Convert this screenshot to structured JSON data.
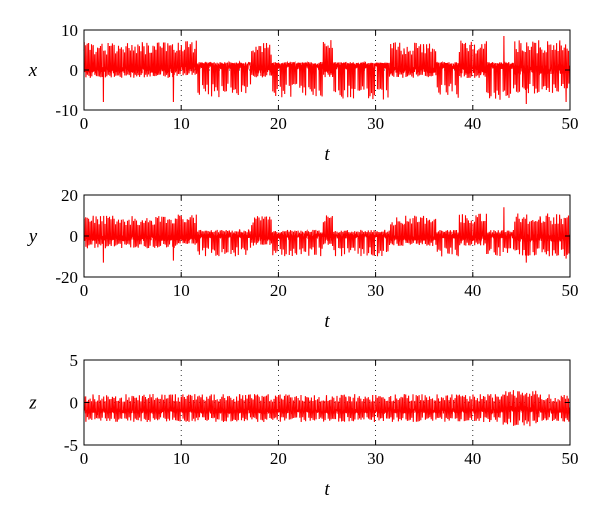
{
  "chart_data": [
    {
      "type": "line",
      "xlabel": "t",
      "ylabel": "x",
      "xlim": [
        0,
        50
      ],
      "ylim": [
        -10,
        10
      ],
      "xticks": [
        0,
        10,
        20,
        30,
        40,
        50
      ],
      "yticks": [
        -10,
        0,
        10
      ],
      "grid": "dotted-vertical",
      "color": "#ff0000",
      "segments": [
        {
          "t0": 0.0,
          "t1": 9.3,
          "base": 0.0,
          "hi": 7.0,
          "lo": -2.0,
          "rate": 6.5
        },
        {
          "t0": 9.3,
          "t1": 11.7,
          "base": 0.5,
          "hi": 7.5,
          "lo": -1.5,
          "rate": 6.5
        },
        {
          "t0": 11.7,
          "t1": 17.2,
          "base": 1.0,
          "hi": 2.0,
          "lo": -7.0,
          "rate": 6.5
        },
        {
          "t0": 17.2,
          "t1": 19.3,
          "base": 0.0,
          "hi": 7.0,
          "lo": -2.0,
          "rate": 6.5
        },
        {
          "t0": 19.3,
          "t1": 24.6,
          "base": 1.0,
          "hi": 2.0,
          "lo": -7.0,
          "rate": 6.5
        },
        {
          "t0": 24.6,
          "t1": 25.6,
          "base": 0.0,
          "hi": 7.5,
          "lo": -2.0,
          "rate": 6.5
        },
        {
          "t0": 25.6,
          "t1": 31.4,
          "base": 1.0,
          "hi": 2.0,
          "lo": -7.5,
          "rate": 6.5
        },
        {
          "t0": 31.4,
          "t1": 36.2,
          "base": 0.0,
          "hi": 7.0,
          "lo": -2.0,
          "rate": 6.5
        },
        {
          "t0": 36.2,
          "t1": 38.6,
          "base": 1.0,
          "hi": 2.0,
          "lo": -7.0,
          "rate": 6.5
        },
        {
          "t0": 38.6,
          "t1": 41.4,
          "base": 0.0,
          "hi": 7.5,
          "lo": -2.0,
          "rate": 6.5
        },
        {
          "t0": 41.4,
          "t1": 44.2,
          "base": 1.0,
          "hi": 2.0,
          "lo": -7.5,
          "rate": 6.5
        },
        {
          "t0": 44.2,
          "t1": 50.0,
          "base": 0.0,
          "hi": 7.5,
          "lo": -6.0,
          "rate": 6.5
        }
      ],
      "spikes": [
        {
          "t": 2.0,
          "v": -8.0
        },
        {
          "t": 9.2,
          "v": -8.0
        },
        {
          "t": 43.2,
          "v": 8.5
        },
        {
          "t": 45.5,
          "v": -8.5
        },
        {
          "t": 49.6,
          "v": -8.0
        }
      ]
    },
    {
      "type": "line",
      "xlabel": "t",
      "ylabel": "y",
      "xlim": [
        0,
        50
      ],
      "ylim": [
        -20,
        20
      ],
      "xticks": [
        0,
        10,
        20,
        30,
        40,
        50
      ],
      "yticks": [
        -20,
        0,
        20
      ],
      "grid": "dotted-vertical",
      "color": "#ff0000",
      "segments": [
        {
          "t0": 0.0,
          "t1": 9.3,
          "base": -1.0,
          "hi": 10.0,
          "lo": -6.0,
          "rate": 6.5
        },
        {
          "t0": 9.3,
          "t1": 11.7,
          "base": -1.0,
          "hi": 11.0,
          "lo": -5.0,
          "rate": 6.5
        },
        {
          "t0": 11.7,
          "t1": 17.2,
          "base": 0.0,
          "hi": 3.0,
          "lo": -10.0,
          "rate": 6.5
        },
        {
          "t0": 17.2,
          "t1": 19.3,
          "base": -1.0,
          "hi": 10.0,
          "lo": -5.0,
          "rate": 6.5
        },
        {
          "t0": 19.3,
          "t1": 24.6,
          "base": 0.0,
          "hi": 3.0,
          "lo": -10.0,
          "rate": 6.5
        },
        {
          "t0": 24.6,
          "t1": 25.6,
          "base": -1.0,
          "hi": 11.0,
          "lo": -5.0,
          "rate": 6.5
        },
        {
          "t0": 25.6,
          "t1": 31.4,
          "base": 0.0,
          "hi": 3.0,
          "lo": -10.0,
          "rate": 6.5
        },
        {
          "t0": 31.4,
          "t1": 36.2,
          "base": -1.0,
          "hi": 10.0,
          "lo": -5.0,
          "rate": 6.5
        },
        {
          "t0": 36.2,
          "t1": 38.6,
          "base": 0.0,
          "hi": 3.0,
          "lo": -10.0,
          "rate": 6.5
        },
        {
          "t0": 38.6,
          "t1": 41.4,
          "base": -1.0,
          "hi": 11.0,
          "lo": -5.0,
          "rate": 6.5
        },
        {
          "t0": 41.4,
          "t1": 44.2,
          "base": 0.0,
          "hi": 3.0,
          "lo": -10.0,
          "rate": 6.5
        },
        {
          "t0": 44.2,
          "t1": 50.0,
          "base": -1.0,
          "hi": 11.0,
          "lo": -10.0,
          "rate": 6.5
        }
      ],
      "spikes": [
        {
          "t": 2.0,
          "v": -13.0
        },
        {
          "t": 9.2,
          "v": -12.0
        },
        {
          "t": 43.2,
          "v": 14.0
        },
        {
          "t": 45.5,
          "v": -13.0
        },
        {
          "t": 49.6,
          "v": -11.0
        }
      ]
    },
    {
      "type": "line",
      "xlabel": "t",
      "ylabel": "z",
      "xlim": [
        0,
        50
      ],
      "ylim": [
        -5,
        5
      ],
      "xticks": [
        0,
        10,
        20,
        30,
        40,
        50
      ],
      "yticks": [
        -5,
        0,
        5
      ],
      "grid": "dotted-vertical",
      "color": "#ff0000",
      "segments": [
        {
          "t0": 0.0,
          "t1": 43.0,
          "base": -1.0,
          "hi": 1.0,
          "lo": -2.3,
          "rate": 6.5
        },
        {
          "t0": 43.0,
          "t1": 46.5,
          "base": -0.8,
          "hi": 1.5,
          "lo": -2.8,
          "rate": 6.5
        },
        {
          "t0": 46.5,
          "t1": 50.0,
          "base": -1.0,
          "hi": 1.0,
          "lo": -2.3,
          "rate": 6.5
        }
      ],
      "spikes": []
    }
  ]
}
